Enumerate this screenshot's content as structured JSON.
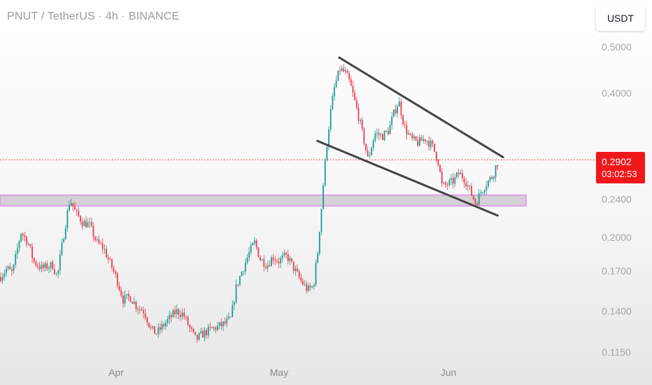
{
  "header": {
    "title": "PNUT / TetherUS · 4h · BINANCE"
  },
  "currency_badge": {
    "label": "USDT"
  },
  "last_price": {
    "price": "0.2902",
    "countdown": "03:02:53",
    "color": "#f0171b"
  },
  "colors": {
    "up": "#1a9b8a",
    "down": "#ee3a4c",
    "trendline": "#444444",
    "zone_fill": "#c9c4cb",
    "zone_border": "#d97ee8",
    "price_line": "#f0171b"
  },
  "chart_data": {
    "type": "candlestick",
    "symbol": "PNUT/USDT",
    "interval": "4h",
    "exchange": "BINANCE",
    "y_scale": "log",
    "ylim": [
      0.115,
      0.52
    ],
    "y_ticks": [
      "0.5000",
      "0.4000",
      "0.2400",
      "0.2000",
      "0.1700",
      "0.1400",
      "0.1150"
    ],
    "x_ticks": [
      "Apr",
      "May",
      "Jun"
    ],
    "last_price": 0.2902,
    "price_path": [
      [
        0,
        0.165
      ],
      [
        10,
        0.172
      ],
      [
        18,
        0.168
      ],
      [
        30,
        0.205
      ],
      [
        40,
        0.195
      ],
      [
        48,
        0.178
      ],
      [
        60,
        0.172
      ],
      [
        75,
        0.175
      ],
      [
        82,
        0.165
      ],
      [
        90,
        0.198
      ],
      [
        100,
        0.24
      ],
      [
        108,
        0.225
      ],
      [
        118,
        0.215
      ],
      [
        128,
        0.212
      ],
      [
        138,
        0.195
      ],
      [
        148,
        0.19
      ],
      [
        156,
        0.178
      ],
      [
        166,
        0.165
      ],
      [
        176,
        0.148
      ],
      [
        186,
        0.15
      ],
      [
        196,
        0.143
      ],
      [
        206,
        0.14
      ],
      [
        216,
        0.128
      ],
      [
        224,
        0.126
      ],
      [
        232,
        0.13
      ],
      [
        242,
        0.135
      ],
      [
        252,
        0.14
      ],
      [
        262,
        0.138
      ],
      [
        270,
        0.13
      ],
      [
        280,
        0.122
      ],
      [
        288,
        0.125
      ],
      [
        300,
        0.128
      ],
      [
        312,
        0.13
      ],
      [
        322,
        0.132
      ],
      [
        330,
        0.135
      ],
      [
        338,
        0.158
      ],
      [
        346,
        0.17
      ],
      [
        356,
        0.185
      ],
      [
        364,
        0.195
      ],
      [
        372,
        0.18
      ],
      [
        382,
        0.175
      ],
      [
        390,
        0.182
      ],
      [
        398,
        0.178
      ],
      [
        410,
        0.183
      ],
      [
        420,
        0.172
      ],
      [
        430,
        0.162
      ],
      [
        440,
        0.155
      ],
      [
        448,
        0.158
      ],
      [
        454,
        0.185
      ],
      [
        460,
        0.235
      ],
      [
        466,
        0.3
      ],
      [
        472,
        0.36
      ],
      [
        478,
        0.41
      ],
      [
        486,
        0.45
      ],
      [
        494,
        0.44
      ],
      [
        500,
        0.42
      ],
      [
        508,
        0.38
      ],
      [
        516,
        0.34
      ],
      [
        526,
        0.29
      ],
      [
        536,
        0.33
      ],
      [
        546,
        0.325
      ],
      [
        556,
        0.335
      ],
      [
        562,
        0.36
      ],
      [
        570,
        0.385
      ],
      [
        578,
        0.34
      ],
      [
        588,
        0.32
      ],
      [
        598,
        0.315
      ],
      [
        608,
        0.322
      ],
      [
        618,
        0.31
      ],
      [
        626,
        0.29
      ],
      [
        632,
        0.255
      ],
      [
        640,
        0.258
      ],
      [
        648,
        0.262
      ],
      [
        656,
        0.272
      ],
      [
        664,
        0.265
      ],
      [
        672,
        0.25
      ],
      [
        680,
        0.235
      ],
      [
        688,
        0.25
      ],
      [
        696,
        0.26
      ],
      [
        704,
        0.268
      ],
      [
        710,
        0.285
      ],
      [
        714,
        0.2902
      ]
    ],
    "trendlines": [
      {
        "name": "channel-upper",
        "from": [
          "2025-05-12",
          0.475
        ],
        "to": [
          "2025-06-11",
          0.294
        ]
      },
      {
        "name": "channel-lower",
        "from": [
          "2025-05-08",
          0.318
        ],
        "to": [
          "2025-06-10",
          0.222
        ]
      }
    ],
    "zones": [
      {
        "name": "support-zone",
        "from": 0.2325,
        "to": 0.245
      }
    ]
  }
}
